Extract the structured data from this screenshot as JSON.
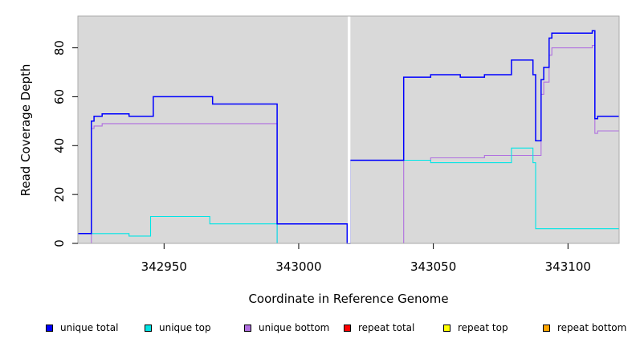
{
  "chart_data": {
    "type": "line",
    "xlabel": "Coordinate in Reference Genome",
    "ylabel": "Read Coverage Depth",
    "xlim": [
      342918,
      343119
    ],
    "ylim": [
      0,
      93
    ],
    "x_ticks": [
      342950,
      343000,
      343050,
      343100
    ],
    "x_tick_labels": [
      "342950",
      "343000",
      "343050",
      "343100"
    ],
    "y_ticks": [
      0,
      20,
      40,
      60,
      80
    ],
    "y_tick_labels": [
      "0",
      "20",
      "40",
      "60",
      "80"
    ],
    "grid": false,
    "legend_position": "bottom",
    "background": "#d9d9d9",
    "gap": [
      343018.2,
      343019.2
    ],
    "series": [
      {
        "name": "unique total",
        "color": "#0000ff",
        "points": [
          [
            342918,
            4
          ],
          [
            342923,
            4
          ],
          [
            342923,
            50
          ],
          [
            342924,
            50
          ],
          [
            342924,
            52
          ],
          [
            342927,
            52
          ],
          [
            342927,
            53
          ],
          [
            342937,
            53
          ],
          [
            342937,
            52
          ],
          [
            342946,
            52
          ],
          [
            342946,
            60
          ],
          [
            342968,
            60
          ],
          [
            342968,
            57
          ],
          [
            342992,
            57
          ],
          [
            342992,
            8
          ],
          [
            343018,
            8
          ],
          [
            343018,
            0
          ],
          [
            343019,
            0
          ],
          [
            343019,
            34
          ],
          [
            343039,
            34
          ],
          [
            343039,
            68
          ],
          [
            343049,
            68
          ],
          [
            343049,
            69
          ],
          [
            343060,
            69
          ],
          [
            343060,
            68
          ],
          [
            343069,
            68
          ],
          [
            343069,
            69
          ],
          [
            343079,
            69
          ],
          [
            343079,
            75
          ],
          [
            343087,
            75
          ],
          [
            343087,
            69
          ],
          [
            343088,
            69
          ],
          [
            343088,
            42
          ],
          [
            343090,
            42
          ],
          [
            343090,
            67
          ],
          [
            343091,
            67
          ],
          [
            343091,
            72
          ],
          [
            343093,
            72
          ],
          [
            343093,
            84
          ],
          [
            343094,
            84
          ],
          [
            343094,
            86
          ],
          [
            343109,
            86
          ],
          [
            343109,
            87
          ],
          [
            343110,
            87
          ],
          [
            343110,
            51
          ],
          [
            343111,
            51
          ],
          [
            343111,
            52
          ],
          [
            343119,
            52
          ]
        ]
      },
      {
        "name": "unique top",
        "color": "#00e5e5",
        "points": [
          [
            342918,
            4
          ],
          [
            342937,
            4
          ],
          [
            342937,
            3
          ],
          [
            342945,
            3
          ],
          [
            342945,
            11
          ],
          [
            342967,
            11
          ],
          [
            342967,
            8
          ],
          [
            342992,
            8
          ],
          [
            342992,
            0
          ],
          [
            343018,
            0
          ],
          [
            343019,
            0
          ],
          [
            343019,
            34
          ],
          [
            343049,
            34
          ],
          [
            343049,
            33
          ],
          [
            343079,
            33
          ],
          [
            343079,
            39
          ],
          [
            343087,
            39
          ],
          [
            343087,
            33
          ],
          [
            343088,
            33
          ],
          [
            343088,
            6
          ],
          [
            343119,
            6
          ]
        ]
      },
      {
        "name": "unique bottom",
        "color": "#b06fe0",
        "points": [
          [
            342918,
            0
          ],
          [
            342923,
            0
          ],
          [
            342923,
            47
          ],
          [
            342924,
            47
          ],
          [
            342924,
            48
          ],
          [
            342927,
            48
          ],
          [
            342927,
            49
          ],
          [
            342992,
            49
          ],
          [
            342992,
            0
          ],
          [
            343039,
            0
          ],
          [
            343039,
            34
          ],
          [
            343049,
            34
          ],
          [
            343049,
            35
          ],
          [
            343069,
            35
          ],
          [
            343069,
            36
          ],
          [
            343090,
            36
          ],
          [
            343090,
            61
          ],
          [
            343091,
            61
          ],
          [
            343091,
            66
          ],
          [
            343093,
            66
          ],
          [
            343093,
            77
          ],
          [
            343094,
            77
          ],
          [
            343094,
            80
          ],
          [
            343109,
            80
          ],
          [
            343109,
            81
          ],
          [
            343110,
            81
          ],
          [
            343110,
            45
          ],
          [
            343111,
            45
          ],
          [
            343111,
            46
          ],
          [
            343119,
            46
          ]
        ]
      },
      {
        "name": "repeat total",
        "color": "#ff0000",
        "points": [
          [
            342918,
            0
          ],
          [
            343119,
            0
          ]
        ]
      },
      {
        "name": "repeat top",
        "color": "#ffff00",
        "points": [
          [
            342918,
            0
          ],
          [
            343119,
            0
          ]
        ]
      },
      {
        "name": "repeat bottom",
        "color": "#ffa500",
        "points": [
          [
            342918,
            0
          ],
          [
            343119,
            0
          ]
        ]
      }
    ]
  }
}
